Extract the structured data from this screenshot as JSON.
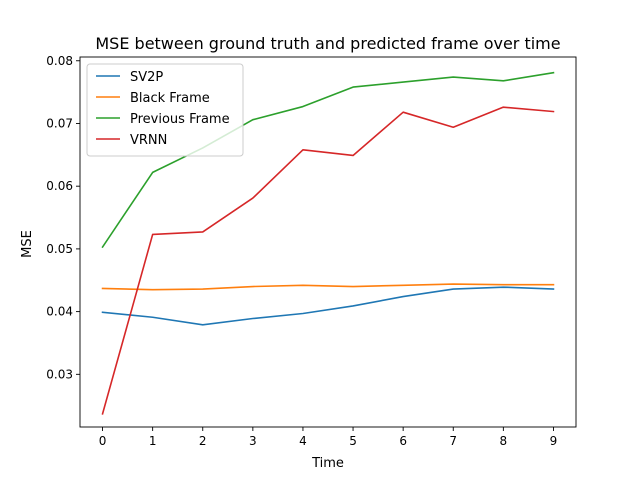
{
  "chart_data": {
    "type": "line",
    "title": "MSE between ground truth and predicted frame over time",
    "xlabel": "Time",
    "ylabel": "MSE",
    "x": [
      0,
      1,
      2,
      3,
      4,
      5,
      6,
      7,
      8,
      9
    ],
    "xlim": [
      -0.45,
      9.45
    ],
    "ylim": [
      0.0216,
      0.0806
    ],
    "x_ticks": [
      0,
      1,
      2,
      3,
      4,
      5,
      6,
      7,
      8,
      9
    ],
    "y_ticks": [
      0.03,
      0.04,
      0.05,
      0.06,
      0.07,
      0.08
    ],
    "y_tick_labels": [
      "0.03",
      "0.04",
      "0.05",
      "0.06",
      "0.07",
      "0.08"
    ],
    "grid": false,
    "legend_position": "top-left",
    "series": [
      {
        "name": "SV2P",
        "color": "#1f77b4",
        "values": [
          0.0399,
          0.0391,
          0.0379,
          0.0389,
          0.0397,
          0.0409,
          0.0424,
          0.0436,
          0.0439,
          0.0436
        ]
      },
      {
        "name": "Black Frame",
        "color": "#ff7f0e",
        "values": [
          0.0437,
          0.0435,
          0.0436,
          0.044,
          0.0442,
          0.044,
          0.0442,
          0.0444,
          0.0443,
          0.0443
        ]
      },
      {
        "name": "Previous Frame",
        "color": "#2ca02c",
        "values": [
          0.0503,
          0.0622,
          0.0661,
          0.0706,
          0.0727,
          0.0758,
          0.0766,
          0.0774,
          0.0768,
          0.0781
        ]
      },
      {
        "name": "VRNN",
        "color": "#d62728",
        "values": [
          0.0237,
          0.0523,
          0.0527,
          0.0581,
          0.0658,
          0.0649,
          0.0718,
          0.0694,
          0.0726,
          0.0719
        ]
      }
    ]
  }
}
